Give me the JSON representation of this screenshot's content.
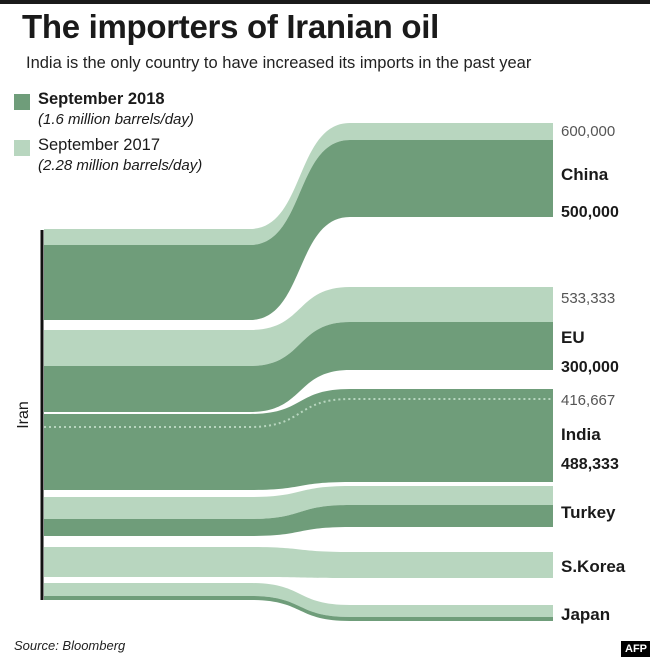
{
  "header": {
    "title": "The importers of Iranian oil",
    "subtitle": "India is the only country to have increased its imports in the past year"
  },
  "legend": {
    "series_2018": {
      "label": "September 2018",
      "sub": "(1.6 million barrels/day)",
      "color": "#6f9d7a"
    },
    "series_2017": {
      "label": "September 2017",
      "sub": "(2.28 million barrels/day)",
      "color": "#b8d6bf"
    }
  },
  "footer": {
    "source": "Source: Bloomberg",
    "agency": "AFP"
  },
  "chart_data": {
    "type": "sankey",
    "source_label": "Iran",
    "colors": {
      "sep_2018": "#6f9d7a",
      "sep_2017": "#b8d6bf",
      "dotted_line": "#b8d6bf"
    },
    "series": [
      {
        "name": "September 2018",
        "total": "1.6 million barrels/day"
      },
      {
        "name": "September 2017",
        "total": "2.28 million barrels/day"
      }
    ],
    "flows": [
      {
        "country": "China",
        "sep_2017": 600000,
        "sep_2018": 500000,
        "label_2017": "600,000",
        "label_2018": "500,000"
      },
      {
        "country": "EU",
        "sep_2017": 533333,
        "sep_2018": 300000,
        "label_2017": "533,333",
        "label_2018": "300,000"
      },
      {
        "country": "India",
        "sep_2017": 416667,
        "sep_2018": 488333,
        "label_2017": "416,667",
        "label_2018": "488,333"
      },
      {
        "country": "Turkey",
        "sep_2017": null,
        "sep_2018": null,
        "label_2017": "",
        "label_2018": ""
      },
      {
        "country": "S.Korea",
        "sep_2017": null,
        "sep_2018": null,
        "label_2017": "",
        "label_2018": ""
      },
      {
        "country": "Japan",
        "sep_2017": null,
        "sep_2018": null,
        "label_2017": "",
        "label_2018": ""
      }
    ]
  }
}
